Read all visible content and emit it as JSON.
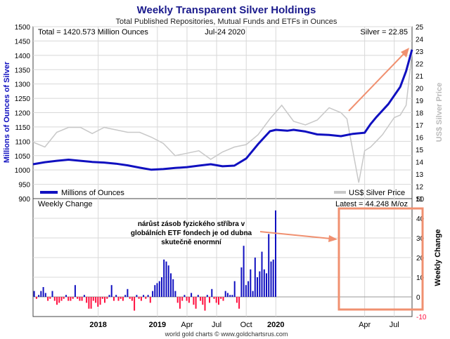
{
  "chart_data": [
    {
      "type": "line",
      "title": "Weekly Transparent Silver Holdings",
      "subtitle": "Total Published Repositories, Mutual Funds and ETFs in Ounces",
      "header": {
        "total_text": "Total = 1420.573 Million Ounces",
        "date_text": "Jul-24  2020",
        "silver_text": "Silver = 22.85"
      },
      "ylabel_left": "Millions of Ounces of Silver",
      "ylabel_right": "US$ Silver Price",
      "ylim_left": [
        900,
        1500
      ],
      "yticks_left": [
        "900",
        "950",
        "1000",
        "1050",
        "1100",
        "1150",
        "1200",
        "1250",
        "1300",
        "1350",
        "1400",
        "1450",
        "1500"
      ],
      "ylim_right": [
        11,
        25
      ],
      "yticks_right": [
        "11",
        "12",
        "13",
        "14",
        "15",
        "16",
        "17",
        "18",
        "19",
        "20",
        "21",
        "22",
        "23",
        "24",
        "25"
      ],
      "legend": {
        "placement": "bottom",
        "holdings": "Millions of Ounces",
        "price": "US$ Silver Price"
      },
      "series": [
        {
          "name": "Millions of Ounces",
          "color": "#1010c0",
          "x": [
            2017.45,
            2017.55,
            2017.65,
            2017.75,
            2017.85,
            2017.95,
            2018.05,
            2018.15,
            2018.25,
            2018.35,
            2018.45,
            2018.55,
            2018.65,
            2018.75,
            2018.85,
            2018.95,
            2019.05,
            2019.15,
            2019.25,
            2019.35,
            2019.45,
            2019.5,
            2019.6,
            2019.65,
            2019.75,
            2019.85,
            2019.95,
            2020.05,
            2020.15,
            2020.25,
            2020.3,
            2020.35,
            2020.45,
            2020.55,
            2020.6,
            2020.65
          ],
          "values": [
            1020,
            1027,
            1032,
            1036,
            1032,
            1028,
            1026,
            1022,
            1016,
            1008,
            1001,
            1003,
            1007,
            1010,
            1015,
            1020,
            1013,
            1015,
            1040,
            1090,
            1135,
            1140,
            1137,
            1140,
            1134,
            1124,
            1122,
            1118,
            1126,
            1130,
            1160,
            1185,
            1230,
            1290,
            1345,
            1420
          ]
        },
        {
          "name": "US$ Silver Price",
          "color": "#c8c8c8",
          "x": [
            2017.45,
            2017.55,
            2017.65,
            2017.75,
            2017.85,
            2017.95,
            2018.05,
            2018.15,
            2018.25,
            2018.35,
            2018.45,
            2018.55,
            2018.65,
            2018.75,
            2018.85,
            2018.95,
            2019.05,
            2019.15,
            2019.25,
            2019.35,
            2019.45,
            2019.55,
            2019.65,
            2019.75,
            2019.85,
            2019.95,
            2020.05,
            2020.1,
            2020.2,
            2020.25,
            2020.3,
            2020.35,
            2020.4,
            2020.5,
            2020.55,
            2020.6,
            2020.65
          ],
          "values": [
            15.6,
            15.2,
            16.4,
            16.8,
            16.8,
            16.3,
            16.8,
            16.6,
            16.4,
            16.4,
            16.0,
            15.5,
            14.5,
            14.7,
            14.9,
            14.2,
            14.8,
            15.2,
            15.4,
            16.2,
            17.5,
            18.6,
            17.3,
            17.0,
            17.4,
            18.4,
            18.0,
            17.5,
            12.3,
            14.9,
            15.2,
            15.7,
            16.2,
            17.6,
            17.8,
            18.6,
            22.9
          ]
        }
      ]
    },
    {
      "type": "bar",
      "label": "Weekly Change",
      "latest_text": "Latest = 44.248 M/oz",
      "ylabel_right": "Weekly Change",
      "ylim": [
        -10,
        50
      ],
      "yticks": [
        "-10",
        "0",
        "10",
        "20",
        "30",
        "40",
        "50"
      ],
      "positive_color": "#1010c0",
      "negative_color": "#ff1040",
      "annotation": "nárůst zásob fyzického stříbra v\nglobálních ETF fondech je od dubna\nskutečně enormní",
      "x_start": 2017.45,
      "x_step": 0.01923,
      "values": [
        3,
        -1,
        1,
        3,
        5,
        2,
        -2,
        -1,
        3,
        -2,
        -4,
        -3,
        -2,
        -1,
        1,
        -2,
        -2,
        -1,
        6,
        -1,
        -2,
        -2,
        1,
        -3,
        -6,
        -6,
        -2,
        -3,
        -5,
        -4,
        -1,
        -3,
        -1,
        1,
        6,
        -2,
        1,
        -2,
        -1,
        -2,
        1,
        4,
        -1,
        -2,
        -7,
        1,
        -1,
        -2,
        1,
        -1,
        1,
        -3,
        3,
        6,
        7,
        8,
        10,
        19,
        18,
        16,
        12,
        9,
        3,
        -3,
        -6,
        -2,
        1,
        -2,
        -3,
        2,
        -4,
        -6,
        1,
        -2,
        -4,
        -7,
        1,
        -3,
        4,
        -1,
        -3,
        -4,
        -1,
        -2,
        3,
        2,
        1,
        1,
        8,
        -3,
        -6,
        15,
        26,
        6,
        8,
        14,
        3,
        20,
        10,
        13,
        23,
        14,
        12,
        32,
        18,
        19,
        44
      ]
    }
  ],
  "x_axis": {
    "range": [
      2017.45,
      2020.65
    ],
    "ticks": [
      {
        "x": 2018.0,
        "label": "2018"
      },
      {
        "x": 2018.5,
        "label": "2019"
      },
      {
        "x": 2018.75,
        "label": "Apr"
      },
      {
        "x": 2019.0,
        "label": "Jul"
      },
      {
        "x": 2019.25,
        "label": "Oct"
      },
      {
        "x": 2019.5,
        "label": "2020"
      },
      {
        "x": 2020.25,
        "label": "Apr"
      },
      {
        "x": 2020.5,
        "label": "Jul"
      }
    ]
  },
  "footer": "world gold charts © www.goldchartsrus.com",
  "colors": {
    "title": "#1a1a8c",
    "annotation_box": "#f09070",
    "grid": "#d8d8d8"
  }
}
